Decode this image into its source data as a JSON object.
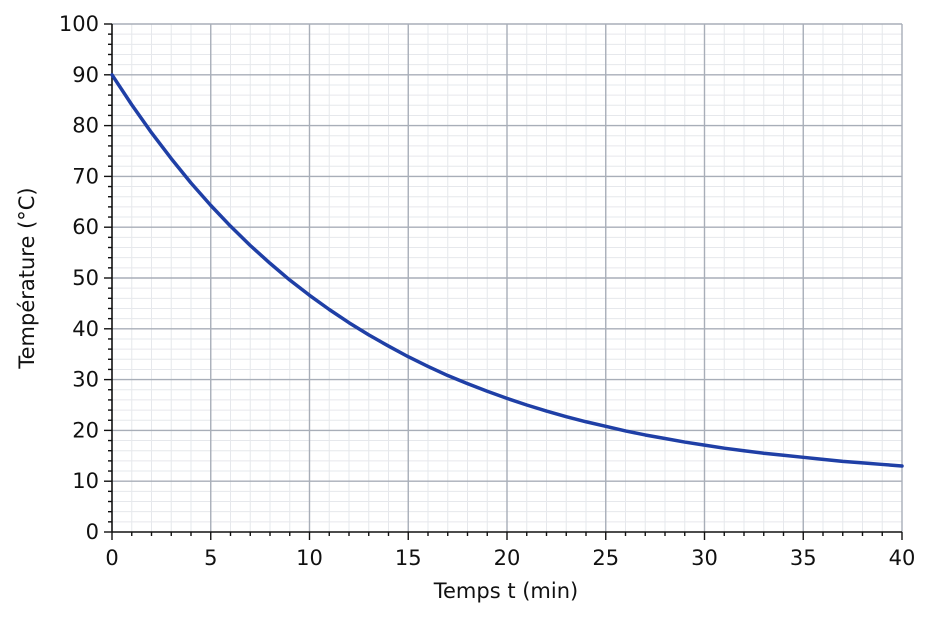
{
  "chart_data": {
    "type": "line",
    "xlabel": "Temps t (min)",
    "ylabel": "Température (°C)",
    "xlim": [
      0,
      40
    ],
    "ylim": [
      0,
      100
    ],
    "x_ticks": [
      0,
      5,
      10,
      15,
      20,
      25,
      30,
      35,
      40
    ],
    "y_ticks": [
      0,
      10,
      20,
      30,
      40,
      50,
      60,
      70,
      80,
      90,
      100
    ],
    "x_minor_step": 1,
    "y_minor_step": 2,
    "grid": true,
    "series": [
      {
        "color": "#1f3fa6",
        "x": [
          0,
          1,
          2,
          3,
          4,
          5,
          6,
          7,
          8,
          9,
          10,
          11,
          12,
          13,
          14,
          15,
          16,
          17,
          18,
          19,
          20,
          21,
          22,
          23,
          24,
          25,
          26,
          27,
          28,
          29,
          30,
          31,
          32,
          33,
          34,
          35,
          36,
          37,
          38,
          39,
          40
        ],
        "y": [
          90,
          84.1,
          78.6,
          73.5,
          68.7,
          64.3,
          60.2,
          56.4,
          52.9,
          49.6,
          46.6,
          43.8,
          41.2,
          38.8,
          36.6,
          34.5,
          32.6,
          30.8,
          29.2,
          27.7,
          26.3,
          25.0,
          23.8,
          22.7,
          21.7,
          20.8,
          19.9,
          19.1,
          18.4,
          17.7,
          17.1,
          16.5,
          16.0,
          15.5,
          15.1,
          14.7,
          14.3,
          13.9,
          13.6,
          13.3,
          13.0
        ]
      }
    ]
  }
}
